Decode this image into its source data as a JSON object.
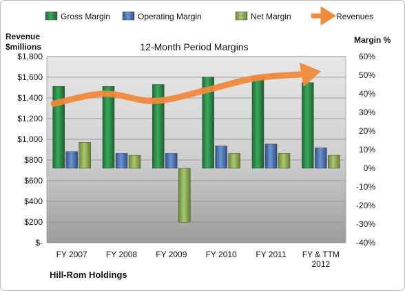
{
  "chart_data": {
    "type": "bar",
    "title": "12-Month Period Margins",
    "company": "Hill-Rom Holdings",
    "left_axis_label": [
      "Revenue",
      "$millions"
    ],
    "right_axis_label": "Margin %",
    "categories": [
      "FY 2007",
      "FY 2008",
      "FY 2009",
      "FY 2010",
      "FY 2011",
      "FY & TTM 2012"
    ],
    "left_axis": {
      "min": 0,
      "max": 1800,
      "step": 200,
      "tick_labels": [
        "$-",
        "$200",
        "$400",
        "$600",
        "$800",
        "$1,000",
        "$1,200",
        "$1,400",
        "$1,600",
        "$1,800"
      ]
    },
    "right_axis": {
      "min": -40,
      "max": 60,
      "step": 10,
      "tick_labels": [
        "-40%",
        "-30%",
        "-20%",
        "-10%",
        "0%",
        "10%",
        "20%",
        "30%",
        "40%",
        "50%",
        "60%"
      ]
    },
    "series": [
      {
        "name": "Gross Margin",
        "type": "bar",
        "axis": "right",
        "values": [
          44,
          44,
          45,
          49,
          49,
          46
        ],
        "color": "#2e8b4a"
      },
      {
        "name": "Operating Margin",
        "type": "bar",
        "axis": "right",
        "values": [
          9,
          8,
          8,
          12,
          13,
          11
        ],
        "color": "#4a6fb0"
      },
      {
        "name": "Net Margin",
        "type": "bar",
        "axis": "right",
        "values": [
          14,
          7,
          -29,
          8,
          8,
          7
        ],
        "color": "#8aac4e"
      },
      {
        "name": "Revenues",
        "type": "line",
        "axis": "left",
        "values": [
          1345,
          1440,
          1370,
          1470,
          1590,
          1630
        ],
        "color": "#f08a3c"
      }
    ],
    "legend_position": "top",
    "grid": true
  }
}
